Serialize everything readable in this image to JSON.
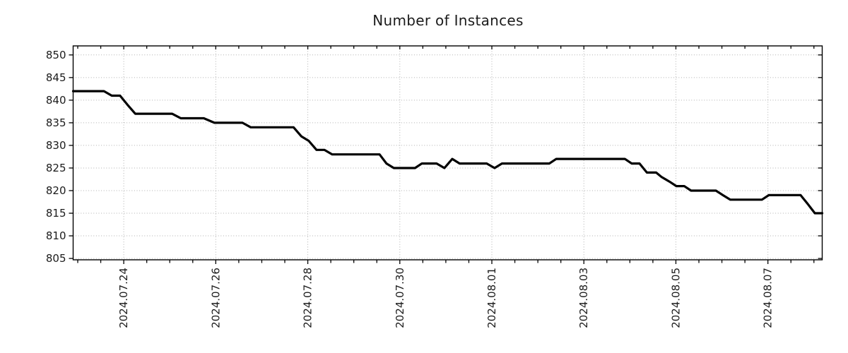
{
  "chart_data": {
    "type": "line",
    "title": "Number of Instances",
    "xlabel": "",
    "ylabel": "",
    "x_unit": "days since 2024-07-23 00:00",
    "xlim": [
      -0.1,
      16.18
    ],
    "ylim": [
      804.7,
      852.0
    ],
    "grid": "dotted",
    "legend": "none",
    "line_color": "#000000",
    "line_width": 3.2,
    "grid_color": "#b0b0b0",
    "axis_color": "#000000",
    "text_color": "#1c1c1c",
    "y_ticks": [
      805,
      810,
      815,
      820,
      825,
      830,
      835,
      840,
      845,
      850
    ],
    "x_ticks": [
      {
        "t": 1,
        "label": "2024.07.24"
      },
      {
        "t": 3,
        "label": "2024.07.26"
      },
      {
        "t": 5,
        "label": "2024.07.28"
      },
      {
        "t": 7,
        "label": "2024.07.30"
      },
      {
        "t": 9,
        "label": "2024.08.01"
      },
      {
        "t": 11,
        "label": "2024.08.03"
      },
      {
        "t": 13,
        "label": "2024.08.05"
      },
      {
        "t": 15,
        "label": "2024.08.07"
      }
    ],
    "x_minor_tick_interval": 0.5,
    "points": [
      [
        -0.1,
        842
      ],
      [
        0.57,
        842
      ],
      [
        0.74,
        841
      ],
      [
        0.92,
        841
      ],
      [
        1.08,
        839
      ],
      [
        1.25,
        837
      ],
      [
        2.05,
        837
      ],
      [
        2.24,
        836
      ],
      [
        2.74,
        836
      ],
      [
        2.97,
        835
      ],
      [
        3.58,
        835
      ],
      [
        3.76,
        834
      ],
      [
        4.69,
        834
      ],
      [
        4.86,
        832
      ],
      [
        5.02,
        831
      ],
      [
        5.19,
        829
      ],
      [
        5.36,
        829
      ],
      [
        5.53,
        828
      ],
      [
        6.56,
        828
      ],
      [
        6.71,
        826
      ],
      [
        6.87,
        825
      ],
      [
        7.33,
        825
      ],
      [
        7.48,
        826
      ],
      [
        7.8,
        826
      ],
      [
        7.97,
        825
      ],
      [
        8.14,
        827
      ],
      [
        8.3,
        826
      ],
      [
        8.89,
        826
      ],
      [
        9.06,
        825
      ],
      [
        9.22,
        826
      ],
      [
        10.25,
        826
      ],
      [
        10.4,
        827
      ],
      [
        11.89,
        827
      ],
      [
        12.04,
        826
      ],
      [
        12.21,
        826
      ],
      [
        12.37,
        824
      ],
      [
        12.57,
        824
      ],
      [
        12.69,
        823
      ],
      [
        12.86,
        822
      ],
      [
        13.01,
        821
      ],
      [
        13.18,
        821
      ],
      [
        13.33,
        820
      ],
      [
        13.87,
        820
      ],
      [
        14.02,
        819
      ],
      [
        14.18,
        818
      ],
      [
        14.87,
        818
      ],
      [
        15.02,
        819
      ],
      [
        15.71,
        819
      ],
      [
        15.87,
        817
      ],
      [
        16.02,
        815
      ],
      [
        16.18,
        815
      ]
    ]
  }
}
